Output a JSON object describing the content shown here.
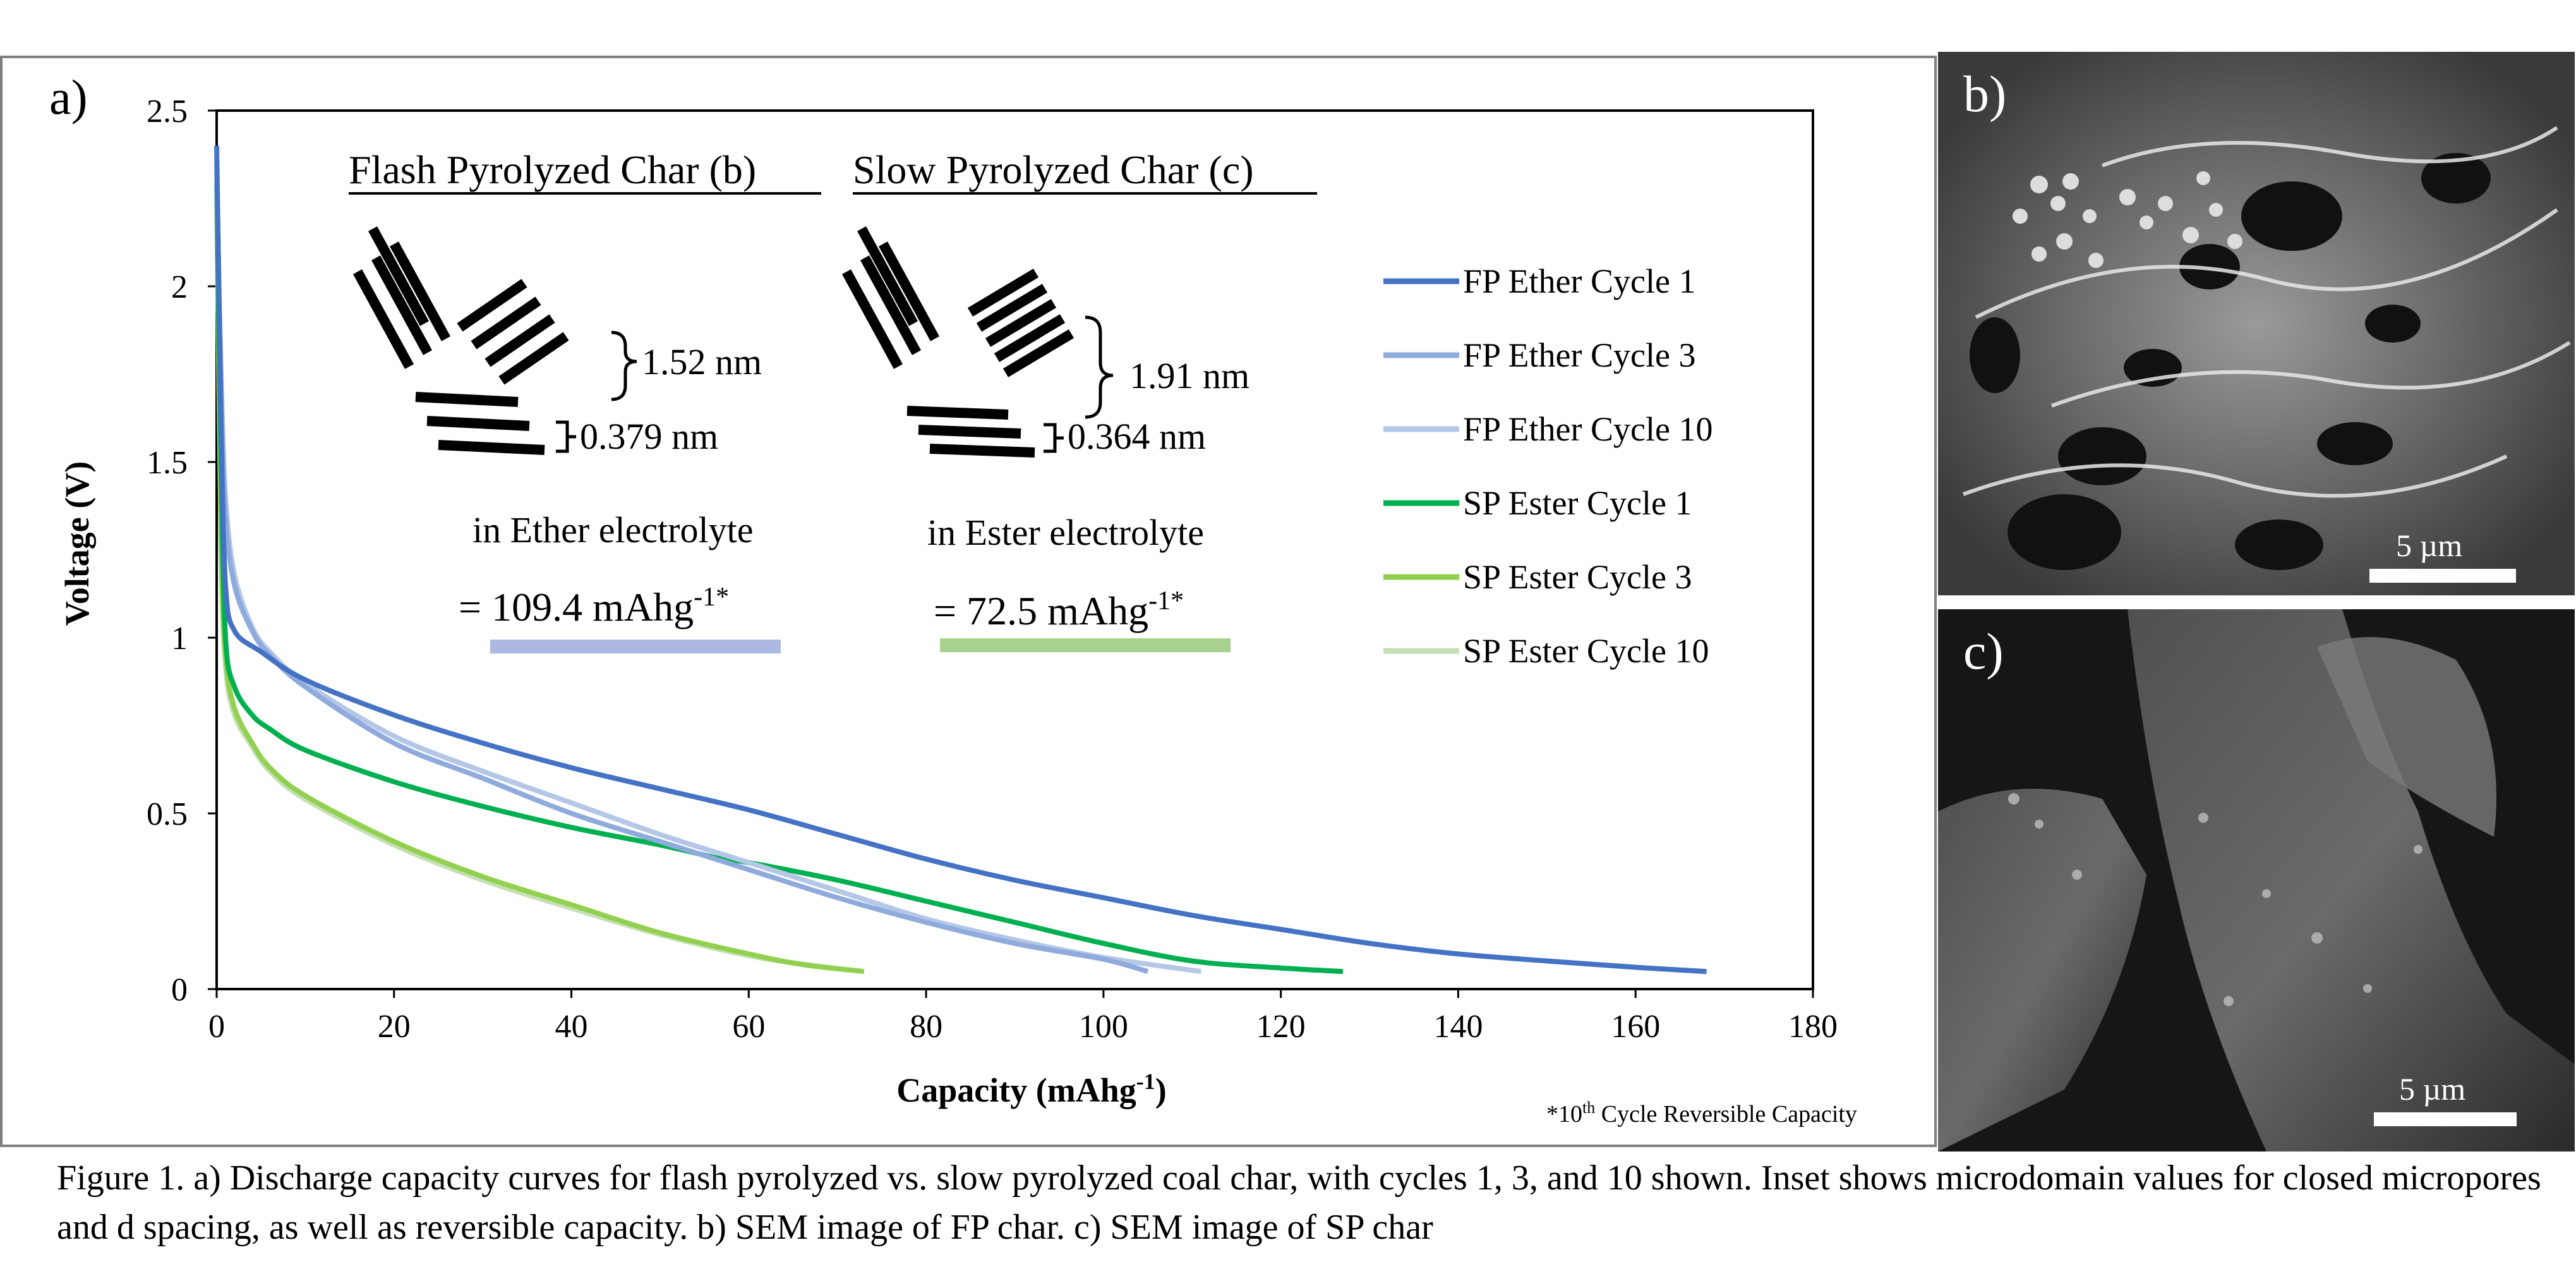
{
  "panel_a_label": "a)",
  "panel_b_label": "b)",
  "panel_c_label": "c)",
  "scale_bar_b": "5 µm",
  "scale_bar_c": "5 µm",
  "inset": {
    "fp_title": "Flash Pyrolyzed Char (b)",
    "sp_title": "Slow Pyrolyzed Char (c)",
    "fp_pore": "1.52 nm",
    "fp_dspacing": "0.379 nm",
    "sp_pore": "1.91 nm",
    "sp_dspacing": "0.364 nm",
    "fp_electrolyte": "in Ether electrolyte",
    "sp_electrolyte": "in Ester electrolyte",
    "fp_capacity_prefix": "= 109.4 mAhg",
    "sp_capacity_prefix": "= 72.5 mAhg",
    "capacity_exp": "-1*",
    "footnote_prefix": "*10",
    "footnote_sup": "th",
    "footnote_suffix": " Cycle Reversible Capacity"
  },
  "caption": "Figure 1. a) Discharge capacity curves for flash pyrolyzed vs. slow pyrolyzed coal char, with cycles 1, 3, and 10 shown. Inset shows microdomain values for closed micropores and d spacing, as well as reversible capacity. b) SEM image of FP char. c) SEM image of SP char",
  "chart_data": {
    "type": "line",
    "title": "",
    "xlabel_main": "Capacity (mAhg",
    "xlabel_exp": "-1",
    "xlabel_close": ")",
    "ylabel": "Voltage (V)",
    "xlim": [
      0,
      180
    ],
    "ylim": [
      0,
      2.5
    ],
    "xticks": [
      0,
      20,
      40,
      60,
      80,
      100,
      120,
      140,
      160,
      180
    ],
    "yticks": [
      0,
      0.5,
      1,
      1.5,
      2,
      2.5
    ],
    "xtick_labels": [
      "0",
      "20",
      "40",
      "60",
      "80",
      "100",
      "120",
      "140",
      "160",
      "180"
    ],
    "ytick_labels": [
      "0",
      "0.5",
      "1",
      "1.5",
      "2",
      "2.5"
    ],
    "grid": false,
    "legend_position": "right",
    "series": [
      {
        "name": "FP Ether Cycle 1",
        "color": "#4472c4",
        "points": [
          [
            0,
            2.4
          ],
          [
            0.5,
            1.6
          ],
          [
            1,
            1.15
          ],
          [
            2,
            1.02
          ],
          [
            5,
            0.96
          ],
          [
            10,
            0.88
          ],
          [
            20,
            0.78
          ],
          [
            30,
            0.7
          ],
          [
            40,
            0.63
          ],
          [
            50,
            0.57
          ],
          [
            60,
            0.51
          ],
          [
            70,
            0.44
          ],
          [
            80,
            0.37
          ],
          [
            90,
            0.31
          ],
          [
            100,
            0.26
          ],
          [
            110,
            0.21
          ],
          [
            120,
            0.17
          ],
          [
            130,
            0.13
          ],
          [
            140,
            0.1
          ],
          [
            150,
            0.08
          ],
          [
            160,
            0.062
          ],
          [
            168,
            0.05
          ]
        ]
      },
      {
        "name": "FP Ether Cycle 3",
        "color": "#8faadc",
        "points": [
          [
            0,
            2.35
          ],
          [
            0.5,
            1.7
          ],
          [
            1,
            1.35
          ],
          [
            2,
            1.15
          ],
          [
            4,
            1.02
          ],
          [
            6,
            0.95
          ],
          [
            10,
            0.86
          ],
          [
            20,
            0.7
          ],
          [
            30,
            0.6
          ],
          [
            40,
            0.5
          ],
          [
            50,
            0.42
          ],
          [
            60,
            0.34
          ],
          [
            70,
            0.26
          ],
          [
            80,
            0.19
          ],
          [
            90,
            0.13
          ],
          [
            100,
            0.085
          ],
          [
            105,
            0.05
          ]
        ]
      },
      {
        "name": "FP Ether Cycle 10",
        "color": "#b4c7e7",
        "points": [
          [
            0,
            2.3
          ],
          [
            0.5,
            1.75
          ],
          [
            1,
            1.4
          ],
          [
            2,
            1.18
          ],
          [
            4,
            1.03
          ],
          [
            6,
            0.96
          ],
          [
            10,
            0.87
          ],
          [
            20,
            0.72
          ],
          [
            30,
            0.62
          ],
          [
            40,
            0.53
          ],
          [
            50,
            0.44
          ],
          [
            60,
            0.36
          ],
          [
            70,
            0.28
          ],
          [
            80,
            0.2
          ],
          [
            90,
            0.14
          ],
          [
            100,
            0.09
          ],
          [
            111,
            0.05
          ]
        ]
      },
      {
        "name": "SP Ester Cycle 1",
        "color": "#00b050",
        "points": [
          [
            0,
            2.3
          ],
          [
            0.5,
            1.5
          ],
          [
            1,
            1.0
          ],
          [
            2,
            0.86
          ],
          [
            4,
            0.78
          ],
          [
            6,
            0.74
          ],
          [
            10,
            0.68
          ],
          [
            20,
            0.59
          ],
          [
            30,
            0.52
          ],
          [
            40,
            0.46
          ],
          [
            50,
            0.41
          ],
          [
            57,
            0.37
          ],
          [
            60,
            0.36
          ],
          [
            70,
            0.31
          ],
          [
            80,
            0.25
          ],
          [
            90,
            0.19
          ],
          [
            100,
            0.13
          ],
          [
            110,
            0.08
          ],
          [
            120,
            0.06
          ],
          [
            127,
            0.05
          ]
        ]
      },
      {
        "name": "SP Ester Cycle 3",
        "color": "#92d050",
        "points": [
          [
            0,
            2.3
          ],
          [
            0.5,
            1.3
          ],
          [
            1,
            0.95
          ],
          [
            2,
            0.8
          ],
          [
            4,
            0.7
          ],
          [
            6,
            0.63
          ],
          [
            10,
            0.55
          ],
          [
            20,
            0.42
          ],
          [
            30,
            0.32
          ],
          [
            40,
            0.24
          ],
          [
            50,
            0.16
          ],
          [
            60,
            0.1
          ],
          [
            66,
            0.07
          ],
          [
            73,
            0.05
          ]
        ]
      },
      {
        "name": "SP Ester Cycle 10",
        "color": "#c5e0b4",
        "points": [
          [
            0,
            2.3
          ],
          [
            0.5,
            1.25
          ],
          [
            1,
            0.92
          ],
          [
            2,
            0.78
          ],
          [
            4,
            0.69
          ],
          [
            6,
            0.62
          ],
          [
            10,
            0.54
          ],
          [
            20,
            0.41
          ],
          [
            30,
            0.31
          ],
          [
            40,
            0.23
          ],
          [
            50,
            0.155
          ],
          [
            60,
            0.095
          ],
          [
            67,
            0.068
          ],
          [
            73,
            0.05
          ]
        ]
      }
    ],
    "annotations": [
      "Flash Pyrolyzed Char (b)",
      "Slow Pyrolyzed Char (c)",
      "1.52 nm",
      "0.379 nm",
      "1.91 nm",
      "0.364 nm",
      "in Ether electrolyte",
      "in Ester electrolyte",
      "= 109.4 mAhg-1*",
      "= 72.5 mAhg-1*",
      "*10th Cycle Reversible Capacity"
    ]
  },
  "colors": {
    "fp_capacity_bar": "#adb9e3",
    "sp_capacity_bar": "#a9d18e"
  }
}
